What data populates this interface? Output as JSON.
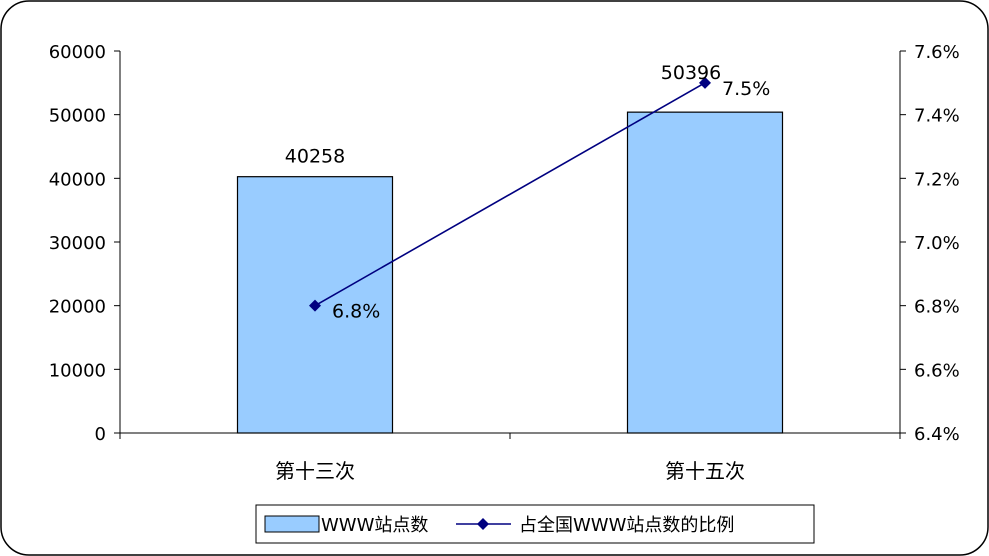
{
  "chart_data": {
    "type": "bar",
    "categories": [
      "第十三次",
      "第十五次"
    ],
    "series": [
      {
        "name": "WWW站点数",
        "kind": "bar",
        "axis": "left",
        "values": [
          40258,
          50396
        ],
        "data_labels": [
          "40258",
          "50396"
        ]
      },
      {
        "name": "占全国WWW站点数的比例",
        "kind": "line",
        "axis": "right",
        "values": [
          6.8,
          7.5
        ],
        "data_labels": [
          "6.8%",
          "7.5%"
        ]
      }
    ],
    "y_left": {
      "ylim": [
        0,
        60000
      ],
      "ticks": [
        0,
        10000,
        20000,
        30000,
        40000,
        50000,
        60000
      ],
      "tick_labels": [
        "0",
        "10000",
        "20000",
        "30000",
        "40000",
        "50000",
        "60000"
      ]
    },
    "y_right": {
      "ylim": [
        6.4,
        7.6
      ],
      "ticks": [
        6.4,
        6.6,
        6.8,
        7.0,
        7.2,
        7.4,
        7.6
      ],
      "tick_labels": [
        "6.4%",
        "6.6%",
        "6.8%",
        "7.0%",
        "7.2%",
        "7.4%",
        "7.6%"
      ]
    },
    "grid": false,
    "legend_position": "bottom",
    "colors": {
      "bar_fill": "#99CCFF",
      "bar_stroke": "#000000",
      "line": "#000080",
      "frame": "#000000"
    }
  }
}
